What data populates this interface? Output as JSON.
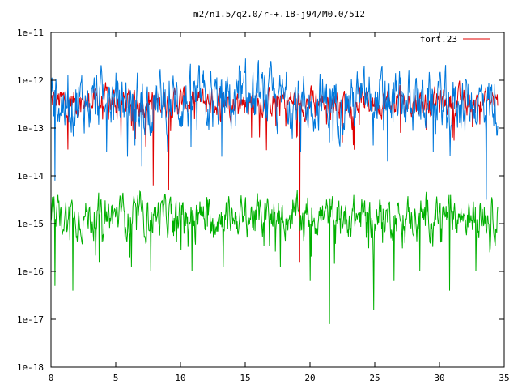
{
  "chart_data": {
    "type": "line",
    "title": "m2/n1.5/q2.0/r-+.18-j94/M0.0/512",
    "xlabel": "",
    "ylabel": "",
    "xlim": [
      0,
      35
    ],
    "ylim_exponent": [
      -18,
      -11
    ],
    "yscale": "log",
    "grid": false,
    "legend_position": "top-right",
    "x_ticks": [
      {
        "value": 0,
        "label": "0"
      },
      {
        "value": 5,
        "label": "5"
      },
      {
        "value": 10,
        "label": "10"
      },
      {
        "value": 15,
        "label": "15"
      },
      {
        "value": 20,
        "label": "20"
      },
      {
        "value": 25,
        "label": "25"
      },
      {
        "value": 30,
        "label": "30"
      },
      {
        "value": 35,
        "label": "35"
      }
    ],
    "y_ticks": [
      {
        "exp": -11,
        "label": "1e-11"
      },
      {
        "exp": -12,
        "label": "1e-12"
      },
      {
        "exp": -13,
        "label": "1e-13"
      },
      {
        "exp": -14,
        "label": "1e-14"
      },
      {
        "exp": -15,
        "label": "1e-15"
      },
      {
        "exp": -16,
        "label": "1e-16"
      },
      {
        "exp": -17,
        "label": "1e-17"
      },
      {
        "exp": -18,
        "label": "1e-18"
      }
    ],
    "series": [
      {
        "name": "fort.23",
        "color": "#e00000",
        "x_range": [
          0,
          34.5
        ],
        "log10_level": -12.45,
        "log10_jitter": 0.22,
        "log10_dips": [
          {
            "x": 1.3,
            "log10": -13.45
          },
          {
            "x": 7.9,
            "log10": -14.2
          },
          {
            "x": 9.1,
            "log10": -14.3
          },
          {
            "x": 15.5,
            "log10": -13.2
          },
          {
            "x": 19.2,
            "log10": -15.8
          },
          {
            "x": 22.5,
            "log10": -13.3
          },
          {
            "x": 27.0,
            "log10": -13.1
          },
          {
            "x": 31.0,
            "log10": -13.2
          }
        ]
      },
      {
        "name": "",
        "color": "#0078dc",
        "x_range": [
          0,
          34.5
        ],
        "log10_level": -12.45,
        "log10_jitter": 0.45,
        "log10_dips": [
          {
            "x": 0.3,
            "log10": -14.1
          },
          {
            "x": 4.3,
            "log10": -13.5
          },
          {
            "x": 5.9,
            "log10": -13.6
          },
          {
            "x": 7.0,
            "log10": -13.8
          },
          {
            "x": 9.0,
            "log10": -13.5
          },
          {
            "x": 10.8,
            "log10": -13.4
          },
          {
            "x": 13.2,
            "log10": -13.6
          },
          {
            "x": 19.3,
            "log10": -13.5
          },
          {
            "x": 21.5,
            "log10": -13.3
          },
          {
            "x": 26.0,
            "log10": -13.7
          },
          {
            "x": 29.5,
            "log10": -13.5
          },
          {
            "x": 33.6,
            "log10": -14.5
          }
        ]
      },
      {
        "name": "",
        "color": "#00b000",
        "x_range": [
          0,
          34.5
        ],
        "log10_level": -14.85,
        "log10_jitter": 0.3,
        "log10_dips": [
          {
            "x": 0.3,
            "log10": -16.3
          },
          {
            "x": 1.7,
            "log10": -16.4
          },
          {
            "x": 3.7,
            "log10": -15.8
          },
          {
            "x": 6.2,
            "log10": -15.9
          },
          {
            "x": 7.7,
            "log10": -16.0
          },
          {
            "x": 10.9,
            "log10": -16.0
          },
          {
            "x": 13.3,
            "log10": -15.9
          },
          {
            "x": 17.7,
            "log10": -15.9
          },
          {
            "x": 20.0,
            "log10": -16.2
          },
          {
            "x": 21.5,
            "log10": -17.1
          },
          {
            "x": 24.9,
            "log10": -16.8
          },
          {
            "x": 26.5,
            "log10": -16.2
          },
          {
            "x": 28.5,
            "log10": -16.0
          },
          {
            "x": 30.8,
            "log10": -16.4
          },
          {
            "x": 32.8,
            "log10": -16.0
          },
          {
            "x": 33.9,
            "log10": -15.6
          }
        ]
      }
    ]
  }
}
